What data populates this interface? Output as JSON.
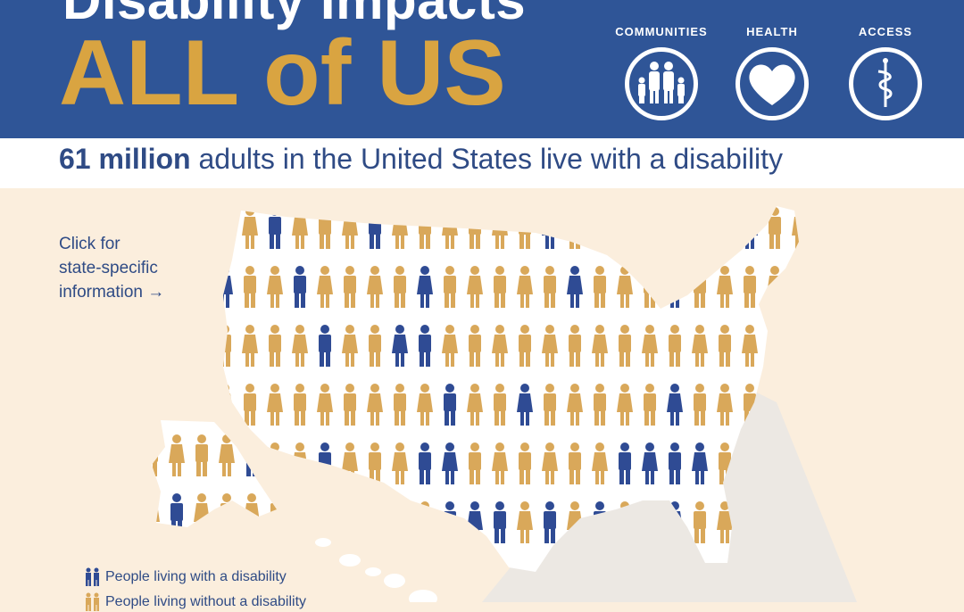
{
  "header": {
    "title_line1": "Disability Impacts",
    "title_line2": "ALL of US",
    "icons": [
      {
        "label": "COMMUNITIES",
        "icon": "family-icon"
      },
      {
        "label": "HEALTH",
        "icon": "heart-icon"
      },
      {
        "label": "ACCESS",
        "icon": "caduceus-icon"
      }
    ]
  },
  "subtitle": {
    "strong": "61 million",
    "rest": " adults in the United States live with a disability"
  },
  "map": {
    "click_note_line1": "Click for",
    "click_note_line2": "state-specific",
    "click_note_line3": "information →"
  },
  "legend": {
    "with_disability": "People living with a disability",
    "without_disability": "People living without a disability"
  },
  "colors": {
    "header_bg": "#2f5597",
    "gold": "#d9a441",
    "navy_figure": "#2f4b94",
    "gold_figure": "#d9a85a",
    "background": "#fbeedd"
  }
}
